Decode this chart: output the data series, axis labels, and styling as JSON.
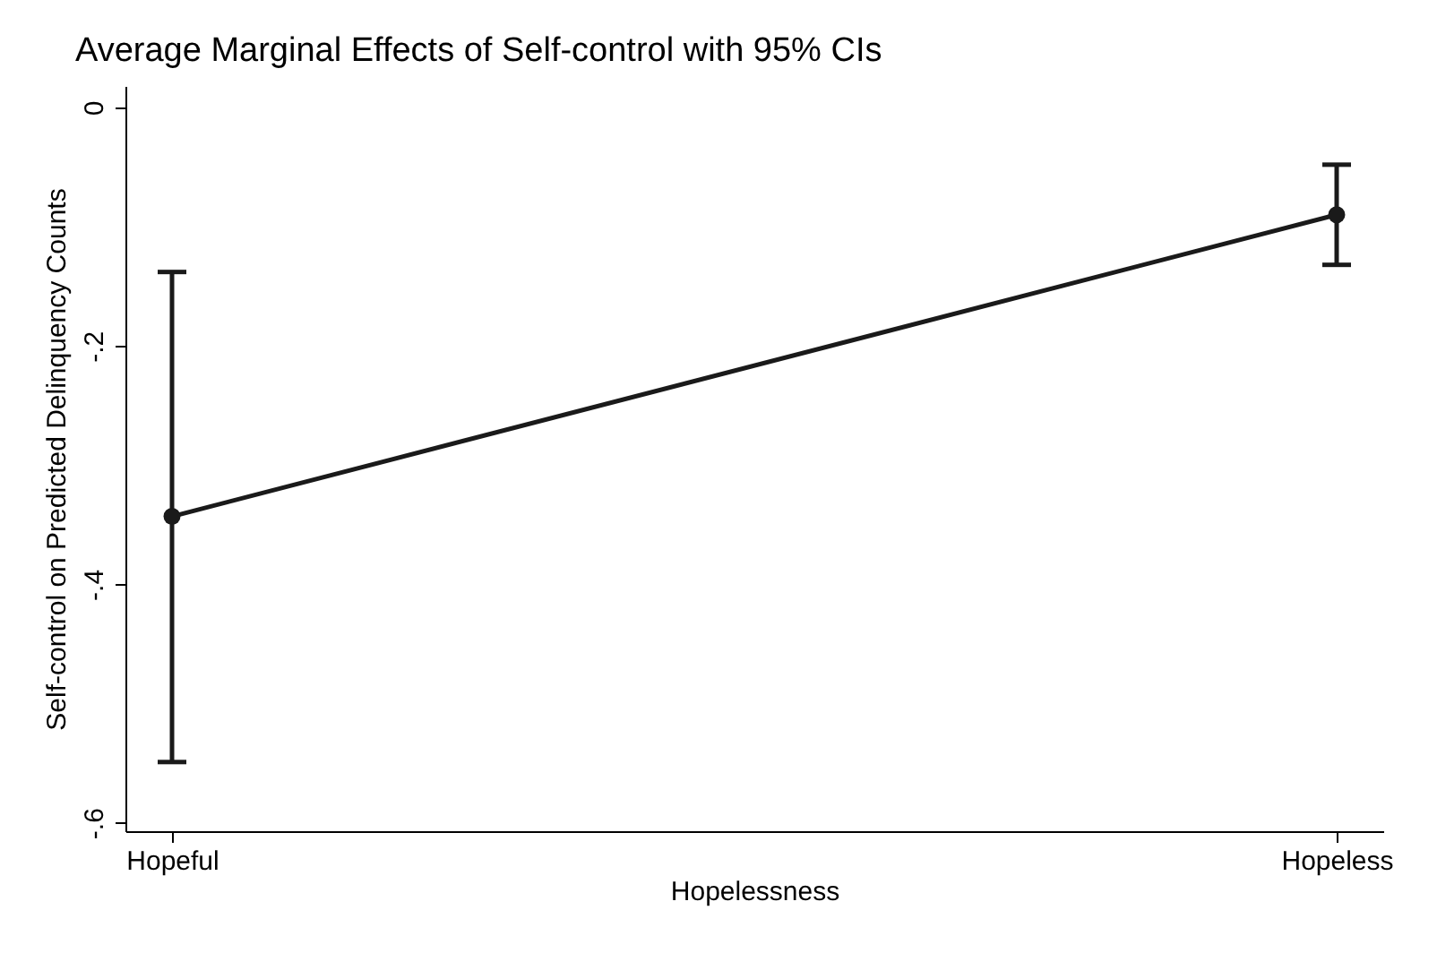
{
  "chart_data": {
    "type": "line",
    "title": "Average Marginal Effects of Self-control with 95% CIs",
    "xlabel": "Hopelessness",
    "ylabel": "Self-control on Predicted Delinquency Counts",
    "categories": [
      "Hopeful",
      "Hopeless"
    ],
    "series": [
      {
        "color": "#1a1a1a",
        "values": [
          -0.343,
          -0.09
        ],
        "errors": [
          [
            -0.549,
            -0.138
          ],
          [
            -0.132,
            -0.048
          ]
        ]
      }
    ],
    "ylim": [
      -0.607,
      0.018
    ],
    "yticks": [
      {
        "value": 0,
        "label": "0"
      },
      {
        "value": -0.2,
        "label": "-.2"
      },
      {
        "value": -0.4,
        "label": "-.4"
      },
      {
        "value": -0.6,
        "label": "-.6"
      }
    ],
    "marker": "circle",
    "line_style": "solid"
  }
}
